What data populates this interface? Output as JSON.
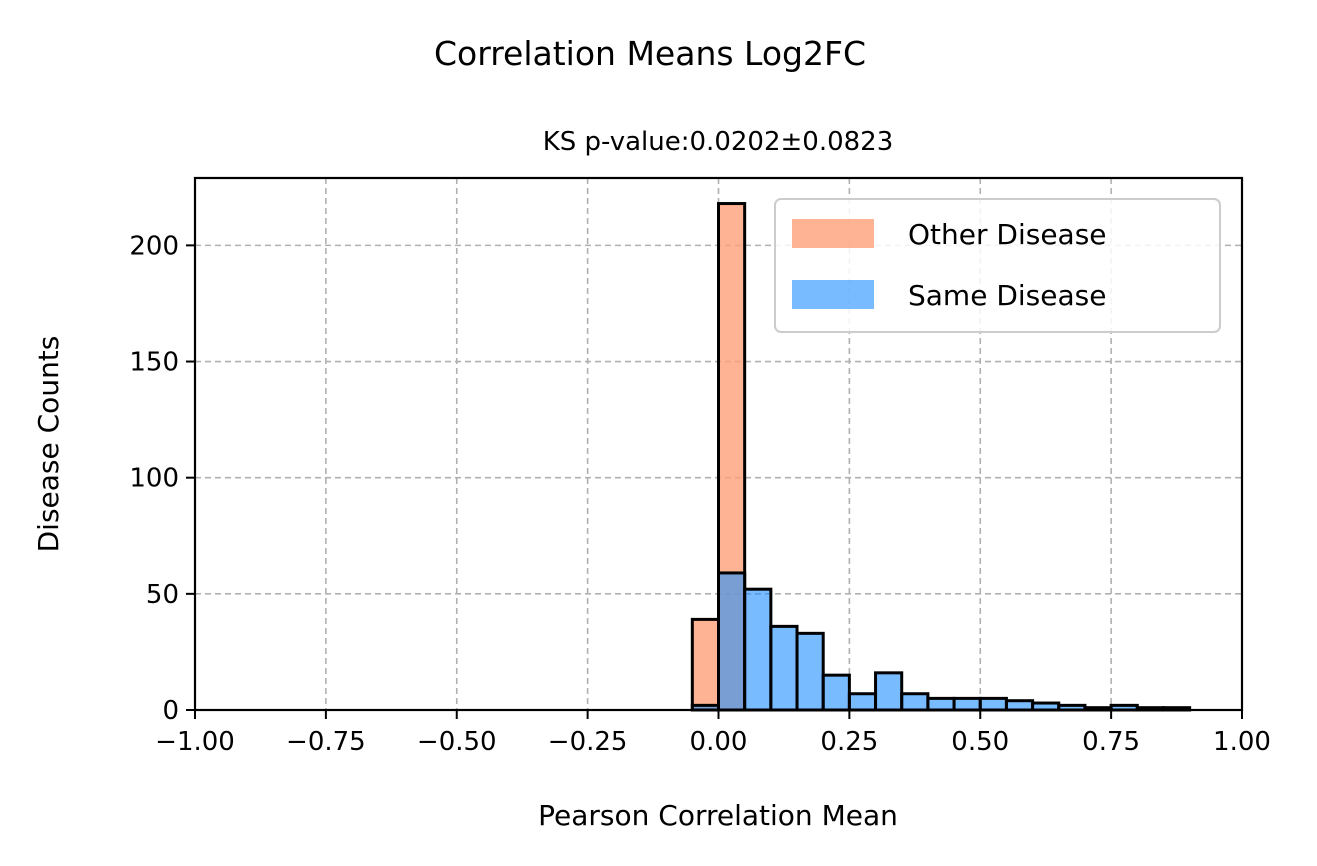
{
  "chart_data": {
    "type": "bar",
    "title": "Correlation Means Log2FC",
    "subtitle": "KS p-value:0.0202±0.0823",
    "xlabel": "Pearson Correlation Mean",
    "ylabel": "Disease Counts",
    "xlim": [
      -1.0,
      1.0
    ],
    "ylim": [
      0,
      229
    ],
    "xticks": [
      -1.0,
      -0.75,
      -0.5,
      -0.25,
      0.0,
      0.25,
      0.5,
      0.75,
      1.0
    ],
    "xtick_labels": [
      "−1.00",
      "−0.75",
      "−0.50",
      "−0.25",
      "0.00",
      "0.25",
      "0.50",
      "0.75",
      "1.00"
    ],
    "yticks": [
      0,
      50,
      100,
      150,
      200
    ],
    "ytick_labels": [
      "0",
      "50",
      "100",
      "150",
      "200"
    ],
    "grid": true,
    "legend_position": "top-right",
    "bin_edges": [
      -1.0,
      -0.95,
      -0.9,
      -0.85,
      -0.8,
      -0.75,
      -0.7,
      -0.65,
      -0.6,
      -0.55,
      -0.5,
      -0.45,
      -0.4,
      -0.35,
      -0.3,
      -0.25,
      -0.2,
      -0.15,
      -0.1,
      -0.05,
      0.0,
      0.05,
      0.1,
      0.15,
      0.2,
      0.25,
      0.3,
      0.35,
      0.4,
      0.45,
      0.5,
      0.55,
      0.6,
      0.65,
      0.7,
      0.75,
      0.8,
      0.85,
      0.9,
      0.95,
      1.0
    ],
    "series": [
      {
        "name": "Other Disease",
        "color": "#ffa07a",
        "opacity": 0.8,
        "values": [
          0,
          0,
          0,
          0,
          0,
          0,
          0,
          0,
          0,
          0,
          0,
          0,
          0,
          0,
          0,
          0,
          0,
          0,
          0,
          39,
          218,
          0,
          0,
          0,
          0,
          0,
          0,
          0,
          0,
          0,
          0,
          0,
          0,
          0,
          0,
          0,
          0,
          0,
          0,
          0
        ]
      },
      {
        "name": "Same Disease",
        "color": "#1e90ff",
        "opacity": 0.6,
        "values": [
          0,
          0,
          0,
          0,
          0,
          0,
          0,
          0,
          0,
          0,
          0,
          0,
          0,
          0,
          0,
          0,
          0,
          0,
          0,
          2,
          59,
          52,
          36,
          33,
          15,
          7,
          16,
          7,
          5,
          5,
          5,
          4,
          3,
          2,
          1,
          2,
          1,
          1,
          0,
          0
        ]
      }
    ]
  }
}
